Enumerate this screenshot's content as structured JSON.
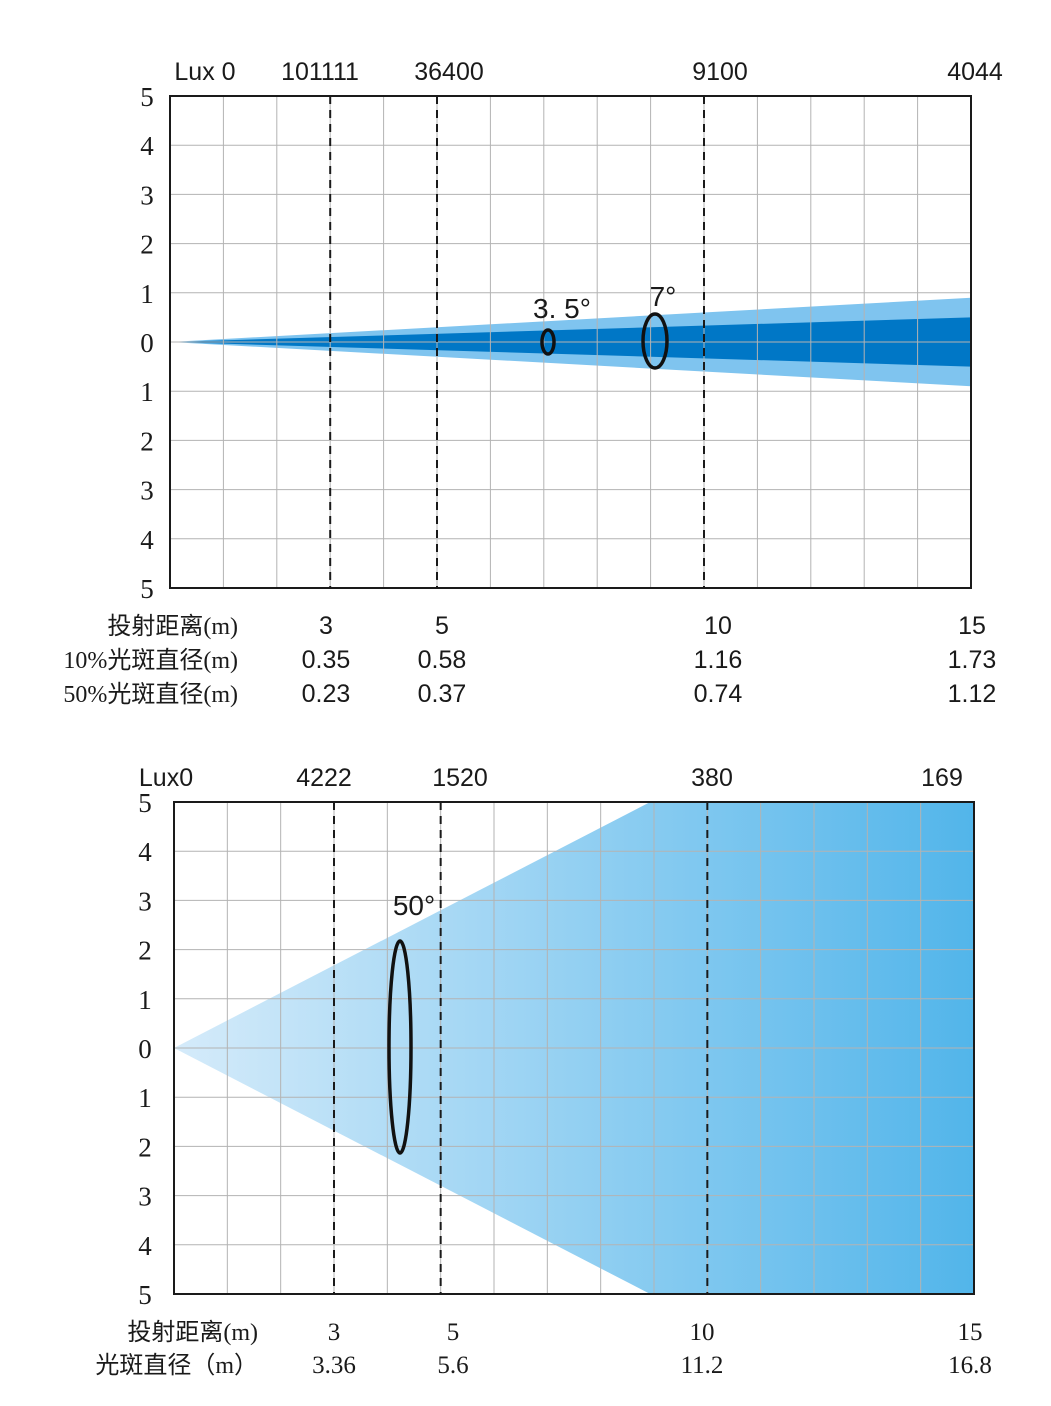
{
  "chart_data": [
    {
      "type": "area",
      "lux_label": "Lux 0",
      "lux": [
        {
          "x": 3,
          "label": "101111"
        },
        {
          "x": 5,
          "label": "36400"
        },
        {
          "x": 10,
          "label": "9100"
        },
        {
          "x": 15,
          "label": "4044"
        }
      ],
      "y_ticks": [
        "5",
        "4",
        "3",
        "2",
        "1",
        "0",
        "1",
        "2",
        "3",
        "4",
        "5"
      ],
      "ylim": [
        -5,
        5
      ],
      "xlim": [
        0,
        15
      ],
      "grid": true,
      "beams": [
        {
          "name": "10%",
          "angle_label": "7°",
          "angle_deg": 7,
          "half_width_at_15": 0.9,
          "color": "#7fc4ef"
        },
        {
          "name": "50%",
          "angle_label": "3. 5°",
          "angle_deg": 3.5,
          "half_width_at_15": 0.5,
          "color": "#0077c6"
        }
      ],
      "rows": [
        {
          "label": "投射距离(m)",
          "values": [
            "3",
            "5",
            "10",
            "15"
          ]
        },
        {
          "label": "10%光斑直径(m)",
          "values": [
            "0.35",
            "0.58",
            "1.16",
            "1.73"
          ]
        },
        {
          "label": "50%光斑直径(m)",
          "values": [
            "0.23",
            "0.37",
            "0.74",
            "1.12"
          ]
        }
      ],
      "distances": [
        3,
        5,
        10,
        15
      ]
    },
    {
      "type": "area",
      "lux_label": "Lux0",
      "lux": [
        {
          "x": 3,
          "label": "4222"
        },
        {
          "x": 5,
          "label": "1520"
        },
        {
          "x": 10,
          "label": "380"
        },
        {
          "x": 15,
          "label": "169"
        }
      ],
      "y_ticks": [
        "5",
        "4",
        "3",
        "2",
        "1",
        "0",
        "1",
        "2",
        "3",
        "4",
        "5"
      ],
      "ylim": [
        -5,
        5
      ],
      "xlim": [
        0,
        15
      ],
      "grid": true,
      "beams": [
        {
          "name": "50°",
          "angle_label": "50°",
          "angle_deg": 50,
          "half_width_at_15": 8.4,
          "color_start": "#d5ebfa",
          "color_end": "#52b5ea"
        }
      ],
      "rows": [
        {
          "label": "投射距离(m)",
          "values": [
            "3",
            "5",
            "10",
            "15"
          ]
        },
        {
          "label": "光斑直径（m）",
          "values": [
            "3.36",
            "5.6",
            "11.2",
            "16.8"
          ]
        }
      ],
      "distances": [
        3,
        5,
        10,
        15
      ]
    }
  ]
}
